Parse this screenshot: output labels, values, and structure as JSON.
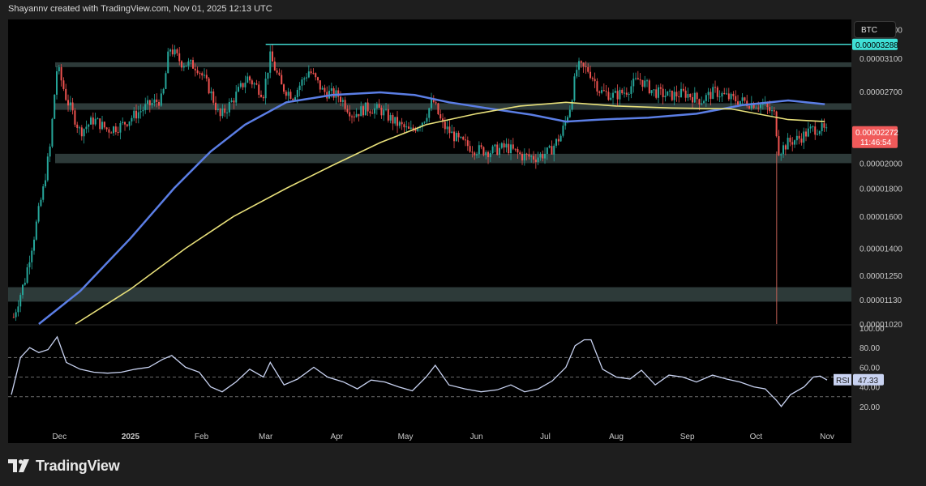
{
  "header": {
    "attribution": "Shayannv created with TradingView.com, Nov 01, 2025 12:13 UTC"
  },
  "ticker": {
    "symbol": "BTC"
  },
  "footer": {
    "brand": "TradingView"
  },
  "colors": {
    "up": "#26a69a",
    "down": "#ef5350",
    "ma_fast": "#5b7ee5",
    "ma_slow": "#e8e07a",
    "rsi": "#c9d3f2",
    "zone": "rgba(160,210,205,0.28)",
    "resistance_line": "#40d8d0",
    "price_label_bg": "#f05a5a",
    "resistance_label_bg": "#3fe0d6"
  },
  "chart_data": [
    {
      "type": "candlestick",
      "title": "",
      "y_scale": "log",
      "ylim": [
        1.02e-05,
        3.65e-05
      ],
      "y_ticks": [
        "0.00003500",
        "0.00003100",
        "0.00002700",
        "0.00002000",
        "0.00001800",
        "0.00001600",
        "0.00001400",
        "0.00001250",
        "0.00001130",
        "0.00001020"
      ],
      "x_ticks": [
        "Dec",
        "2025",
        "Feb",
        "Mar",
        "Apr",
        "May",
        "Jun",
        "Jul",
        "Aug",
        "Sep",
        "Oct",
        "Nov"
      ],
      "price_points": [
        [
          "2024-11-11",
          1.05e-05
        ],
        [
          "2024-11-16",
          1.23e-05
        ],
        [
          "2024-11-20",
          1.48e-05
        ],
        [
          "2024-11-24",
          1.8e-05
        ],
        [
          "2024-11-27",
          2.15e-05
        ],
        [
          "2024-11-30",
          3e-05
        ],
        [
          "2024-12-04",
          2.62e-05
        ],
        [
          "2024-12-10",
          2.28e-05
        ],
        [
          "2024-12-16",
          2.4e-05
        ],
        [
          "2024-12-22",
          2.3e-05
        ],
        [
          "2024-12-28",
          2.34e-05
        ],
        [
          "2025-01-03",
          2.45e-05
        ],
        [
          "2025-01-09",
          2.55e-05
        ],
        [
          "2025-01-15",
          2.62e-05
        ],
        [
          "2025-01-18",
          3.25e-05
        ],
        [
          "2025-01-23",
          3.05e-05
        ],
        [
          "2025-01-30",
          3e-05
        ],
        [
          "2025-02-04",
          2.75e-05
        ],
        [
          "2025-02-09",
          2.42e-05
        ],
        [
          "2025-02-14",
          2.58e-05
        ],
        [
          "2025-02-21",
          2.86e-05
        ],
        [
          "2025-02-28",
          2.68e-05
        ],
        [
          "2025-03-03",
          3.12e-05
        ],
        [
          "2025-03-08",
          2.75e-05
        ],
        [
          "2025-03-13",
          2.65e-05
        ],
        [
          "2025-03-20",
          2.95e-05
        ],
        [
          "2025-03-26",
          2.7e-05
        ],
        [
          "2025-04-02",
          2.65e-05
        ],
        [
          "2025-04-08",
          2.45e-05
        ],
        [
          "2025-04-14",
          2.52e-05
        ],
        [
          "2025-04-20",
          2.5e-05
        ],
        [
          "2025-04-26",
          2.38e-05
        ],
        [
          "2025-05-03",
          2.28e-05
        ],
        [
          "2025-05-09",
          2.4e-05
        ],
        [
          "2025-05-13",
          2.6e-05
        ],
        [
          "2025-05-17",
          2.35e-05
        ],
        [
          "2025-05-24",
          2.2e-05
        ],
        [
          "2025-05-31",
          2.12e-05
        ],
        [
          "2025-06-07",
          2.1e-05
        ],
        [
          "2025-06-14",
          2.14e-05
        ],
        [
          "2025-06-21",
          2.06e-05
        ],
        [
          "2025-06-27",
          2.05e-05
        ],
        [
          "2025-07-03",
          2.1e-05
        ],
        [
          "2025-07-08",
          2.25e-05
        ],
        [
          "2025-07-12",
          2.55e-05
        ],
        [
          "2025-07-15",
          3e-05
        ],
        [
          "2025-07-20",
          2.95e-05
        ],
        [
          "2025-07-25",
          2.7e-05
        ],
        [
          "2025-07-31",
          2.65e-05
        ],
        [
          "2025-08-05",
          2.7e-05
        ],
        [
          "2025-08-11",
          2.85e-05
        ],
        [
          "2025-08-17",
          2.7e-05
        ],
        [
          "2025-08-24",
          2.65e-05
        ],
        [
          "2025-08-31",
          2.68e-05
        ],
        [
          "2025-09-07",
          2.6e-05
        ],
        [
          "2025-09-13",
          2.7e-05
        ],
        [
          "2025-09-20",
          2.62e-05
        ],
        [
          "2025-09-27",
          2.58e-05
        ],
        [
          "2025-10-04",
          2.55e-05
        ],
        [
          "2025-10-09",
          2.45e-05
        ],
        [
          "2025-10-11",
          2.1e-05
        ],
        [
          "2025-10-15",
          2.18e-05
        ],
        [
          "2025-10-20",
          2.22e-05
        ],
        [
          "2025-10-25",
          2.3e-05
        ],
        [
          "2025-10-29",
          2.32e-05
        ],
        [
          "2025-11-01",
          2.27e-05
        ]
      ],
      "ma_fast": [
        [
          "2024-11-22",
          1.02e-05
        ],
        [
          "2024-12-10",
          1.17e-05
        ],
        [
          "2025-01-01",
          1.46e-05
        ],
        [
          "2025-01-20",
          1.8e-05
        ],
        [
          "2025-02-05",
          2.1e-05
        ],
        [
          "2025-02-20",
          2.35e-05
        ],
        [
          "2025-03-10",
          2.58e-05
        ],
        [
          "2025-03-30",
          2.66e-05
        ],
        [
          "2025-04-20",
          2.69e-05
        ],
        [
          "2025-05-05",
          2.66e-05
        ],
        [
          "2025-05-20",
          2.58e-05
        ],
        [
          "2025-06-05",
          2.52e-05
        ],
        [
          "2025-06-25",
          2.45e-05
        ],
        [
          "2025-07-10",
          2.38e-05
        ],
        [
          "2025-07-25",
          2.4e-05
        ],
        [
          "2025-08-15",
          2.42e-05
        ],
        [
          "2025-09-05",
          2.46e-05
        ],
        [
          "2025-09-25",
          2.55e-05
        ],
        [
          "2025-10-15",
          2.6e-05
        ],
        [
          "2025-10-31",
          2.56e-05
        ]
      ],
      "ma_slow": [
        [
          "2024-12-08",
          1.02e-05
        ],
        [
          "2025-01-01",
          1.18e-05
        ],
        [
          "2025-01-25",
          1.4e-05
        ],
        [
          "2025-02-15",
          1.6e-05
        ],
        [
          "2025-03-10",
          1.8e-05
        ],
        [
          "2025-03-30",
          1.98e-05
        ],
        [
          "2025-04-20",
          2.18e-05
        ],
        [
          "2025-05-10",
          2.35e-05
        ],
        [
          "2025-06-01",
          2.46e-05
        ],
        [
          "2025-06-20",
          2.54e-05
        ],
        [
          "2025-07-10",
          2.58e-05
        ],
        [
          "2025-08-01",
          2.54e-05
        ],
        [
          "2025-08-25",
          2.52e-05
        ],
        [
          "2025-09-20",
          2.51e-05
        ],
        [
          "2025-10-15",
          2.4e-05
        ],
        [
          "2025-10-31",
          2.38e-05
        ]
      ],
      "zones": [
        {
          "low": 2.99e-05,
          "high": 3.05e-05
        },
        {
          "low": 2.5e-05,
          "high": 2.57e-05
        },
        {
          "low": 2e-05,
          "high": 2.08e-05
        },
        {
          "low": 1.12e-05,
          "high": 1.19e-05
        }
      ],
      "resistance_line": {
        "value": 3.288e-05,
        "from": "2025-03-01"
      },
      "event_line": {
        "date": "2025-10-10"
      },
      "labels": {
        "resistance": "0.00003288",
        "last_price": "0.00002272",
        "countdown": "11:46:54"
      }
    },
    {
      "type": "line",
      "title": "",
      "series": [
        {
          "name": "RSI"
        }
      ],
      "ylim": [
        5,
        100
      ],
      "y_ticks": [
        "100.00",
        "80.00",
        "60.00",
        "40.00",
        "20.00"
      ],
      "levels": [
        70,
        50,
        30
      ],
      "rsi_points": [
        [
          "2024-11-10",
          32
        ],
        [
          "2024-11-14",
          70
        ],
        [
          "2024-11-18",
          80
        ],
        [
          "2024-11-22",
          75
        ],
        [
          "2024-11-26",
          78
        ],
        [
          "2024-11-30",
          91
        ],
        [
          "2024-12-04",
          65
        ],
        [
          "2024-12-10",
          58
        ],
        [
          "2024-12-16",
          55
        ],
        [
          "2024-12-22",
          54
        ],
        [
          "2024-12-28",
          55
        ],
        [
          "2025-01-03",
          58
        ],
        [
          "2025-01-09",
          60
        ],
        [
          "2025-01-15",
          68
        ],
        [
          "2025-01-19",
          72
        ],
        [
          "2025-01-25",
          60
        ],
        [
          "2025-01-31",
          55
        ],
        [
          "2025-02-05",
          40
        ],
        [
          "2025-02-10",
          35
        ],
        [
          "2025-02-16",
          45
        ],
        [
          "2025-02-22",
          58
        ],
        [
          "2025-02-28",
          50
        ],
        [
          "2025-03-03",
          65
        ],
        [
          "2025-03-09",
          42
        ],
        [
          "2025-03-15",
          48
        ],
        [
          "2025-03-22",
          60
        ],
        [
          "2025-03-28",
          50
        ],
        [
          "2025-04-04",
          45
        ],
        [
          "2025-04-10",
          38
        ],
        [
          "2025-04-16",
          47
        ],
        [
          "2025-04-22",
          45
        ],
        [
          "2025-04-28",
          40
        ],
        [
          "2025-05-04",
          36
        ],
        [
          "2025-05-10",
          50
        ],
        [
          "2025-05-14",
          62
        ],
        [
          "2025-05-20",
          42
        ],
        [
          "2025-05-27",
          38
        ],
        [
          "2025-06-03",
          35
        ],
        [
          "2025-06-10",
          37
        ],
        [
          "2025-06-16",
          42
        ],
        [
          "2025-06-22",
          35
        ],
        [
          "2025-06-28",
          38
        ],
        [
          "2025-07-04",
          46
        ],
        [
          "2025-07-10",
          60
        ],
        [
          "2025-07-14",
          82
        ],
        [
          "2025-07-18",
          88
        ],
        [
          "2025-07-21",
          88
        ],
        [
          "2025-07-26",
          58
        ],
        [
          "2025-08-01",
          50
        ],
        [
          "2025-08-07",
          48
        ],
        [
          "2025-08-12",
          57
        ],
        [
          "2025-08-18",
          42
        ],
        [
          "2025-08-24",
          52
        ],
        [
          "2025-08-30",
          50
        ],
        [
          "2025-09-05",
          45
        ],
        [
          "2025-09-12",
          52
        ],
        [
          "2025-09-18",
          48
        ],
        [
          "2025-09-24",
          45
        ],
        [
          "2025-09-30",
          40
        ],
        [
          "2025-10-05",
          38
        ],
        [
          "2025-10-10",
          26
        ],
        [
          "2025-10-12",
          20
        ],
        [
          "2025-10-16",
          32
        ],
        [
          "2025-10-22",
          40
        ],
        [
          "2025-10-26",
          50
        ],
        [
          "2025-10-29",
          51
        ],
        [
          "2025-11-01",
          47
        ]
      ],
      "last_label": "RSI",
      "last_value": "47.33"
    }
  ]
}
